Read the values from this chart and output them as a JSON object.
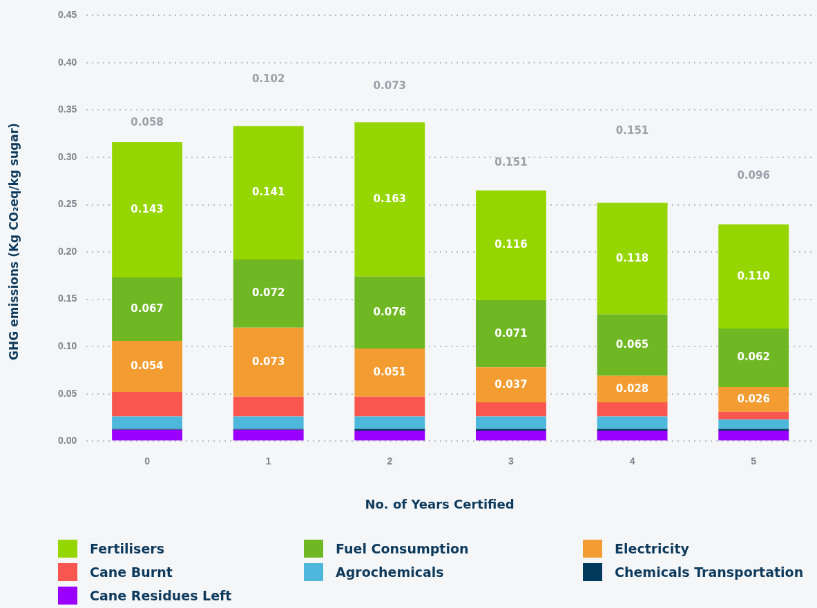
{
  "chart_data": {
    "type": "bar",
    "stacked": true,
    "xlabel": "No. of Years Certified",
    "ylabel": "GHG emissions (Kg CO₂eq/kg sugar)",
    "categories": [
      "0",
      "1",
      "2",
      "3",
      "4",
      "5"
    ],
    "ylim": [
      0,
      0.45
    ],
    "yticks": [
      {
        "value": 0,
        "label": "0.00"
      },
      {
        "value": 0.05,
        "label": "0.05"
      },
      {
        "value": 0.1,
        "label": "0.10"
      },
      {
        "value": 0.15,
        "label": "0.15"
      },
      {
        "value": 0.2,
        "label": "0.20"
      },
      {
        "value": 0.25,
        "label": "0.25"
      },
      {
        "value": 0.3,
        "label": "0.30"
      },
      {
        "value": 0.35,
        "label": "0.35"
      },
      {
        "value": 0.4,
        "label": "0.40"
      },
      {
        "value": 0.45,
        "label": "0.45"
      }
    ],
    "grid": "y",
    "legend": "bottom",
    "series": [
      {
        "name": "Cane Residues Left",
        "color": "#9900ff",
        "values": [
          0.012,
          0.012,
          0.011,
          0.011,
          0.011,
          0.011
        ]
      },
      {
        "name": "Chemicals Transportation",
        "color": "#003a5c",
        "values": [
          0.001,
          0.001,
          0.002,
          0.002,
          0.002,
          0.002
        ]
      },
      {
        "name": "Agrochemicals",
        "color": "#4db8dc",
        "values": [
          0.013,
          0.013,
          0.013,
          0.013,
          0.013,
          0.01
        ]
      },
      {
        "name": "Cane Burnt",
        "color": "#fa5650",
        "values": [
          0.026,
          0.021,
          0.021,
          0.015,
          0.015,
          0.008
        ]
      },
      {
        "name": "Electricity",
        "color": "#f39c31",
        "values": [
          0.054,
          0.073,
          0.051,
          0.037,
          0.028,
          0.026
        ],
        "value_labels": [
          "0.054",
          "0.073",
          "0.051",
          "0.037",
          "0.028",
          "0.026"
        ]
      },
      {
        "name": "Fuel Consumption",
        "color": "#6fb823",
        "values": [
          0.067,
          0.072,
          0.076,
          0.071,
          0.065,
          0.062
        ],
        "value_labels": [
          "0.067",
          "0.072",
          "0.076",
          "0.071",
          "0.065",
          "0.062"
        ]
      },
      {
        "name": "Fertilisers",
        "color": "#96d600",
        "values": [
          0.143,
          0.141,
          0.163,
          0.116,
          0.118,
          0.11
        ],
        "value_labels": [
          "0.143",
          "0.141",
          "0.163",
          "0.116",
          "0.118",
          "0.110"
        ]
      }
    ],
    "annotations": [
      "0.058",
      "0.102",
      "0.073",
      "0.151",
      "0.151",
      "0.096"
    ]
  }
}
